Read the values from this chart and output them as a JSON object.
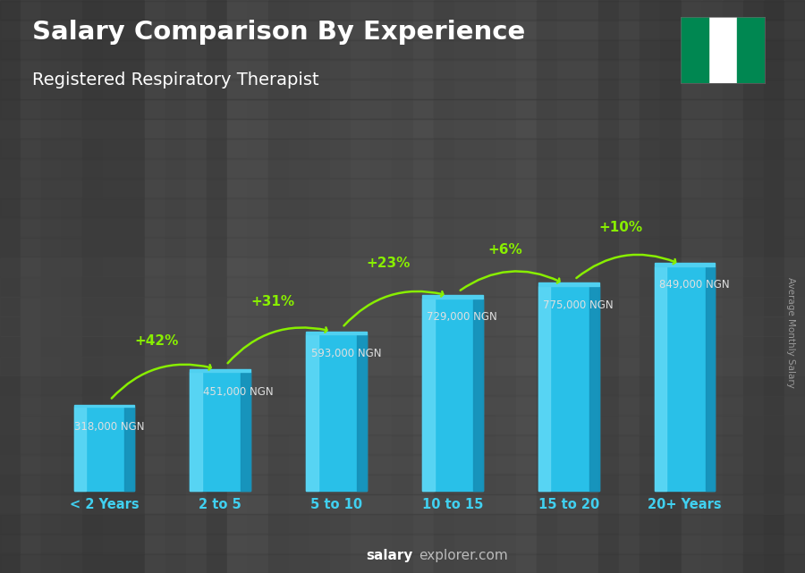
{
  "title": "Salary Comparison By Experience",
  "subtitle": "Registered Respiratory Therapist",
  "categories": [
    "< 2 Years",
    "2 to 5",
    "5 to 10",
    "10 to 15",
    "15 to 20",
    "20+ Years"
  ],
  "values": [
    318000,
    451000,
    593000,
    729000,
    775000,
    849000
  ],
  "labels": [
    "318,000 NGN",
    "451,000 NGN",
    "593,000 NGN",
    "729,000 NGN",
    "775,000 NGN",
    "849,000 NGN"
  ],
  "pct_changes": [
    "+42%",
    "+31%",
    "+23%",
    "+6%",
    "+10%"
  ],
  "bar_main_color": "#29c0e8",
  "bar_light_color": "#60d8f5",
  "bar_dark_color": "#1590b8",
  "bar_top_color": "#50d0f0",
  "bg_color": "#2e2e2e",
  "text_color": "#ffffff",
  "label_color": "#e0e0e0",
  "pct_color": "#88ee00",
  "x_label_color": "#40d0f0",
  "footer_salary_color": "#ffffff",
  "footer_explorer_color": "#aaaaaa",
  "side_label": "Average Monthly Salary",
  "nigeria_green": "#008751",
  "nigeria_white": "#ffffff"
}
